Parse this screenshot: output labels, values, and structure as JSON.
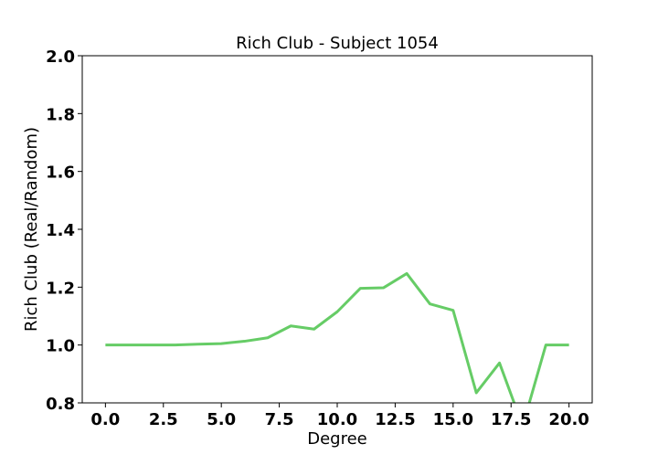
{
  "chart_data": {
    "type": "line",
    "title": "Rich Club - Subject 1054",
    "xlabel": "Degree",
    "ylabel": "Rich Club (Real/Random)",
    "xlim": [
      -1,
      21
    ],
    "ylim": [
      0.8,
      2.0
    ],
    "xticks": [
      "0.0",
      "2.5",
      "5.0",
      "7.5",
      "10.0",
      "12.5",
      "15.0",
      "17.5",
      "20.0"
    ],
    "xtick_values": [
      0,
      2.5,
      5,
      7.5,
      10,
      12.5,
      15,
      17.5,
      20
    ],
    "yticks": [
      "0.8",
      "1.0",
      "1.2",
      "1.4",
      "1.6",
      "1.8",
      "2.0"
    ],
    "ytick_values": [
      0.8,
      1.0,
      1.2,
      1.4,
      1.6,
      1.8,
      2.0
    ],
    "grid": false,
    "series": [
      {
        "color": "#66cc66",
        "x": [
          0,
          1,
          2,
          3,
          4,
          5,
          6,
          7,
          8,
          9,
          10,
          11,
          12,
          13,
          14,
          15,
          16,
          17,
          18,
          19,
          20
        ],
        "y": [
          1.0,
          1.0,
          1.0,
          1.0,
          1.003,
          1.005,
          1.013,
          1.025,
          1.066,
          1.055,
          1.115,
          1.196,
          1.198,
          1.247,
          1.142,
          1.12,
          0.835,
          0.938,
          0.72,
          1.0,
          1.0
        ]
      }
    ]
  }
}
